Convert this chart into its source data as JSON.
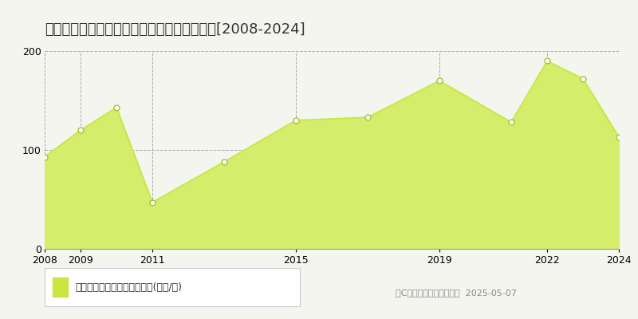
{
  "title": "大阪市住吉区帝塚山東　マンション価格推移[2008-2024]",
  "years": [
    2008,
    2009,
    2010,
    2011,
    2013,
    2015,
    2017,
    2019,
    2021,
    2022,
    2023,
    2024
  ],
  "values": [
    93,
    120,
    143,
    47,
    88,
    130,
    133,
    170,
    128,
    190,
    172,
    113
  ],
  "line_color": "#c8e641",
  "fill_color": "#d4ed6a",
  "marker_color": "#ffffff",
  "marker_edge_color": "#aabf30",
  "background_color": "#f5f5f0",
  "grid_color": "#aaaaaa",
  "ylim": [
    0,
    200
  ],
  "yticks": [
    0,
    100,
    200
  ],
  "xlabel_ticks": [
    2008,
    2009,
    2011,
    2015,
    2019,
    2022,
    2024
  ],
  "legend_label": "マンション価格　平均坪単価(万円/坪)",
  "copyright_text": "（C）土地価格ドットコム  2025-05-07",
  "title_fontsize": 13,
  "tick_fontsize": 9,
  "legend_fontsize": 9
}
